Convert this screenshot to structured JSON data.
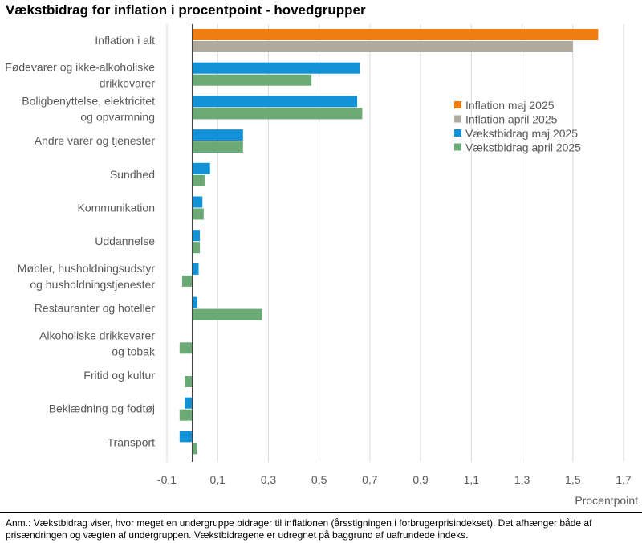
{
  "chart_data": {
    "type": "bar",
    "orientation": "horizontal",
    "title": "Vækstbidrag for inflation i procentpoint - hovedgrupper",
    "xlabel": "Procentpoint",
    "ylabel": "",
    "xlim": [
      -0.1,
      1.7
    ],
    "xticks": [
      "-0,1",
      "0,1",
      "0,3",
      "0,5",
      "0,7",
      "0,9",
      "1,1",
      "1,3",
      "1,5",
      "1,7"
    ],
    "xtick_values": [
      -0.1,
      0.1,
      0.3,
      0.5,
      0.7,
      0.9,
      1.1,
      1.3,
      1.5,
      1.7
    ],
    "grid": "vertical",
    "legend_position": "right",
    "categories": [
      {
        "lines": [
          "Inflation i alt"
        ]
      },
      {
        "lines": [
          "Fødevarer og ikke-alkoholiske",
          "drikkevarer"
        ]
      },
      {
        "lines": [
          "Boligbenyttelse, elektricitet",
          "og opvarmning"
        ]
      },
      {
        "lines": [
          "Andre varer og tjenester"
        ]
      },
      {
        "lines": [
          "Sundhed"
        ]
      },
      {
        "lines": [
          "Kommunikation"
        ]
      },
      {
        "lines": [
          "Uddannelse"
        ]
      },
      {
        "lines": [
          "Møbler, husholdningsudstyr",
          "og husholdningstjenester"
        ]
      },
      {
        "lines": [
          "Restauranter og hoteller"
        ]
      },
      {
        "lines": [
          "Alkoholiske drikkevarer",
          "og tobak"
        ]
      },
      {
        "lines": [
          "Fritid og kultur"
        ]
      },
      {
        "lines": [
          "Beklædning og fodtøj"
        ]
      },
      {
        "lines": [
          "Transport"
        ]
      }
    ],
    "series": [
      {
        "name": "Inflation maj 2025",
        "color": "#F07D0F",
        "values": [
          1.6,
          null,
          null,
          null,
          null,
          null,
          null,
          null,
          null,
          null,
          null,
          null,
          null
        ]
      },
      {
        "name": "Inflation april 2025",
        "color": "#AEAA9D",
        "values": [
          1.5,
          null,
          null,
          null,
          null,
          null,
          null,
          null,
          null,
          null,
          null,
          null,
          null
        ]
      },
      {
        "name": "Vækstbidrag maj 2025",
        "color": "#1292D6",
        "values": [
          null,
          0.66,
          0.65,
          0.2,
          0.07,
          0.04,
          0.03,
          0.025,
          0.02,
          0.0,
          0.0,
          -0.03,
          -0.05
        ]
      },
      {
        "name": "Vækstbidrag april 2025",
        "color": "#6BAA75",
        "values": [
          null,
          0.47,
          0.67,
          0.2,
          0.05,
          0.045,
          0.03,
          -0.04,
          0.275,
          -0.05,
          -0.03,
          -0.05,
          0.02
        ]
      }
    ],
    "note": "Anm.: Vækstbidrag viser, hvor meget en undergruppe bidrager til inflationen (årsstigningen i forbrugerprisindekset). Det afhænger både af prisændringen og vægten af undergruppen. Vækstbidragene er udregnet på baggrund af uafrundede indeks."
  }
}
